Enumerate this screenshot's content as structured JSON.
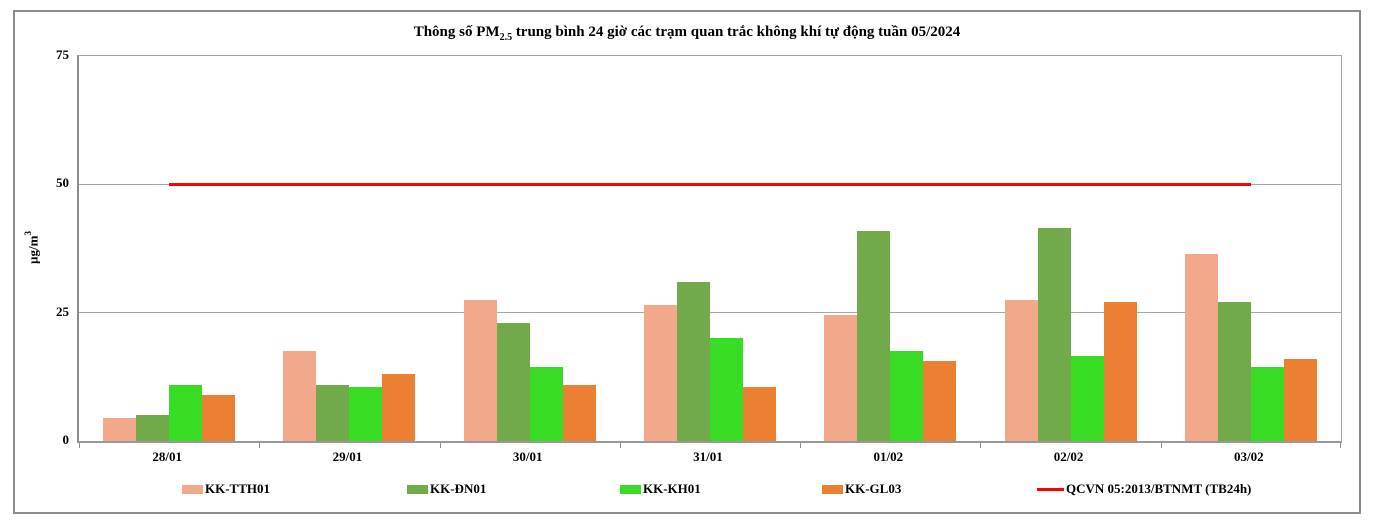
{
  "title": {
    "prefix": "Thông số PM",
    "subscript": "2.5",
    "suffix": " trung bình 24 giờ các trạm quan trắc không khí tự động tuần 05/2024"
  },
  "y_axis": {
    "label_main": "µg/m",
    "label_sup": "3"
  },
  "chart_data": {
    "type": "bar",
    "title": "Thông số PM2.5 trung bình 24 giờ các trạm quan trắc không khí tự động tuần 05/2024",
    "ylabel": "µg/m3",
    "xlabel": "",
    "ylim": [
      0,
      75
    ],
    "yticks": [
      0,
      25,
      50,
      75
    ],
    "grid": true,
    "legend_position": "bottom",
    "categories": [
      "28/01",
      "29/01",
      "30/01",
      "31/01",
      "01/02",
      "02/02",
      "03/02"
    ],
    "series": [
      {
        "name": "KK-TTH01",
        "color": "#F1A88B",
        "values": [
          4.5,
          17.5,
          27.5,
          26.5,
          24.5,
          27.5,
          36.5
        ]
      },
      {
        "name": "KK-ĐN01",
        "color": "#72AA4B",
        "values": [
          5,
          11,
          23,
          31,
          41,
          41.5,
          27
        ]
      },
      {
        "name": "KK-KH01",
        "color": "#38DC25",
        "values": [
          11,
          10.5,
          14.5,
          20,
          17.5,
          16.5,
          14.5
        ]
      },
      {
        "name": "KK-GL03",
        "color": "#EC8032",
        "values": [
          9,
          13,
          11,
          10.5,
          15.5,
          27,
          16
        ]
      }
    ],
    "reference_line": {
      "name": "QCVN 05:2013/BTNMT (TB24h)",
      "value": 50,
      "color": "#FF0000"
    }
  },
  "colors": {
    "gridline": "#A6A6A6",
    "axis": "#8C8C8C",
    "frame_border": "#8C8C8C",
    "background": "#FFFFFF"
  }
}
